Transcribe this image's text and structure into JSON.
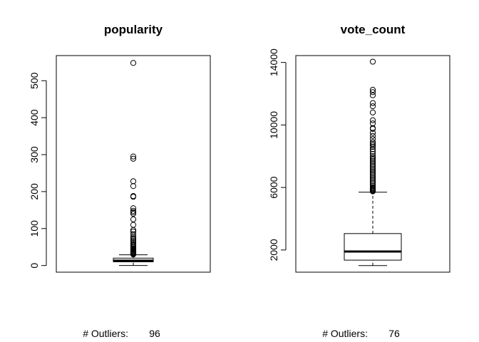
{
  "chart_data": [
    {
      "type": "boxplot",
      "title": "popularity",
      "xlabel": "",
      "ylabel": "",
      "ylim": [
        -18,
        568
      ],
      "yticks": [
        "0",
        "100",
        "200",
        "300",
        "400",
        "500"
      ],
      "box": {
        "min": 0,
        "q1": 10,
        "median": 13,
        "q3": 20,
        "whisker_high": 29
      },
      "outliers": [
        548,
        295,
        289,
        228,
        215,
        188,
        186,
        155,
        148,
        144,
        140,
        125,
        110,
        96,
        92,
        85,
        78,
        74,
        70,
        66,
        62,
        58,
        55,
        52,
        49,
        46,
        44,
        42,
        40,
        38,
        36,
        35,
        34,
        33,
        32,
        31,
        30
      ],
      "annotation_label": "# Outliers:",
      "annotation_value": "96"
    },
    {
      "type": "boxplot",
      "title": "vote_count",
      "xlabel": "",
      "ylabel": "",
      "ylim": [
        580,
        14440
      ],
      "yticks": [
        "2000",
        "6000",
        "10000",
        "14000"
      ],
      "box": {
        "min": 1000,
        "q1": 1350,
        "median": 1900,
        "q3": 3050,
        "whisker_high": 5700
      },
      "outliers": [
        14050,
        12250,
        12100,
        11900,
        11400,
        11200,
        10800,
        10300,
        10100,
        9800,
        9750,
        9500,
        9300,
        9100,
        8900,
        8800,
        8700,
        8600,
        8450,
        8300,
        8150,
        8000,
        7900,
        7800,
        7700,
        7600,
        7500,
        7400,
        7300,
        7200,
        7100,
        7000,
        6900,
        6800,
        6700,
        6600,
        6500,
        6400,
        6300,
        6200,
        6100,
        6000,
        5950,
        5900,
        5850,
        5800,
        5750
      ],
      "annotation_label": "# Outliers:",
      "annotation_value": "76"
    }
  ]
}
